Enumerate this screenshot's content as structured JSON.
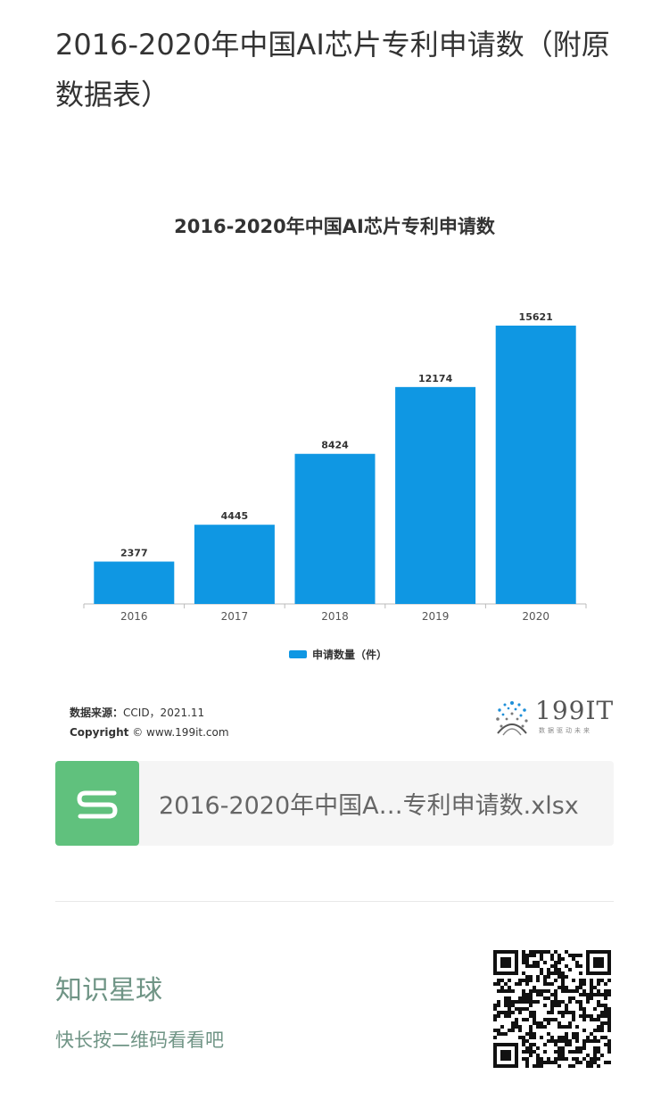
{
  "page": {
    "title": "2016-2020年中国AI芯片专利申请数（附原数据表）"
  },
  "chart": {
    "title": "2016-2020年中国AI芯片专利申请数",
    "legend_label": "申请数量（件）",
    "bar_color": "#0f97e3",
    "source_label": "数据来源：",
    "source_value": "CCID，2021.11",
    "copyright_label": "Copyright",
    "copyright_value": "© www.199it.com"
  },
  "chart_data": {
    "type": "bar",
    "title": "2016-2020年中国AI芯片专利申请数",
    "categories": [
      "2016",
      "2017",
      "2018",
      "2019",
      "2020"
    ],
    "series": [
      {
        "name": "申请数量（件）",
        "values": [
          2377,
          4445,
          8424,
          12174,
          15621
        ]
      }
    ],
    "data_labels": true,
    "grid": false,
    "legend": "bottom"
  },
  "brand": {
    "name": "199IT",
    "tagline": "数据驱动未来"
  },
  "attachment": {
    "file_name": "2016-2020年中国A…专利申请数.xlsx",
    "icon": "spreadsheet-s-icon",
    "icon_color": "#60c17d"
  },
  "footer": {
    "title": "知识星球",
    "subtitle": "快长按二维码看看吧",
    "accent_color": "#6f9485"
  }
}
